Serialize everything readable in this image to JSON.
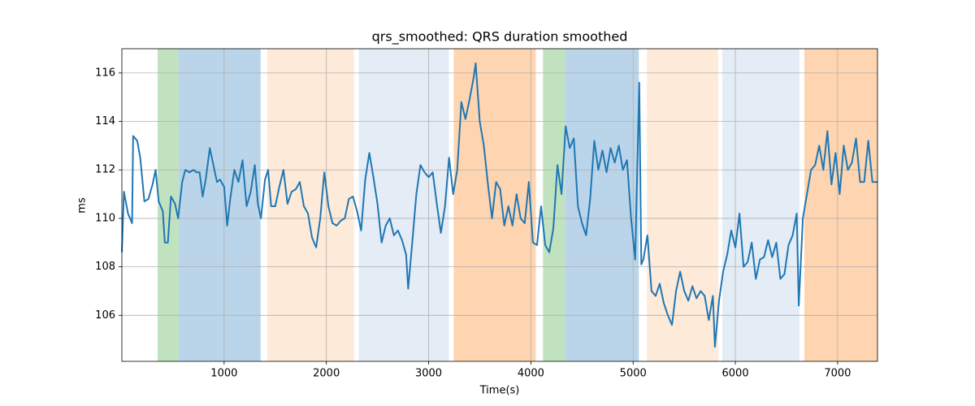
{
  "chart_data": {
    "type": "line",
    "title": "qrs_smoothed: QRS duration smoothed",
    "x_label": "Time(s)",
    "y_label": "ms",
    "xlim": [
      0,
      7390
    ],
    "ylim": [
      104.1,
      117.0
    ],
    "xticks": [
      1000,
      2000,
      3000,
      4000,
      5000,
      6000,
      7000
    ],
    "yticks": [
      106,
      108,
      110,
      112,
      114,
      116
    ],
    "grid": true,
    "spans": [
      {
        "start": 350,
        "end": 555,
        "color": "#c0e2bf"
      },
      {
        "start": 555,
        "end": 1357,
        "color": "#bad5e9"
      },
      {
        "start": 1421,
        "end": 2270,
        "color": "#feead8"
      },
      {
        "start": 2317,
        "end": 3198,
        "color": "#e4ecf6"
      },
      {
        "start": 3246,
        "end": 4048,
        "color": "#fed5b0"
      },
      {
        "start": 4119,
        "end": 4333,
        "color": "#c0e2bf"
      },
      {
        "start": 4333,
        "end": 5056,
        "color": "#bad5e9"
      },
      {
        "start": 5135,
        "end": 5833,
        "color": "#feead8"
      },
      {
        "start": 5873,
        "end": 6627,
        "color": "#e4ecf6"
      },
      {
        "start": 6675,
        "end": 7390,
        "color": "#fed5b0"
      }
    ],
    "series": [
      {
        "color": "#1f77b4",
        "x": [
          0,
          20,
          60,
          100,
          110,
          150,
          180,
          220,
          260,
          300,
          330,
          360,
          400,
          420,
          450,
          480,
          520,
          550,
          590,
          620,
          660,
          700,
          730,
          760,
          790,
          820,
          860,
          890,
          930,
          960,
          1000,
          1030,
          1060,
          1100,
          1140,
          1180,
          1220,
          1260,
          1300,
          1330,
          1360,
          1400,
          1430,
          1460,
          1500,
          1540,
          1580,
          1620,
          1660,
          1700,
          1740,
          1780,
          1820,
          1860,
          1900,
          1940,
          1980,
          2020,
          2060,
          2100,
          2140,
          2180,
          2220,
          2260,
          2300,
          2340,
          2380,
          2420,
          2460,
          2500,
          2540,
          2580,
          2620,
          2660,
          2700,
          2740,
          2780,
          2800,
          2840,
          2880,
          2920,
          2960,
          3000,
          3040,
          3080,
          3120,
          3160,
          3200,
          3240,
          3280,
          3320,
          3360,
          3400,
          3440,
          3460,
          3500,
          3540,
          3580,
          3620,
          3660,
          3700,
          3740,
          3780,
          3820,
          3860,
          3900,
          3940,
          3980,
          4020,
          4060,
          4100,
          4140,
          4180,
          4220,
          4260,
          4300,
          4340,
          4380,
          4420,
          4460,
          4500,
          4540,
          4580,
          4620,
          4660,
          4700,
          4740,
          4780,
          4820,
          4860,
          4900,
          4940,
          4980,
          5020,
          5060,
          5080,
          5100,
          5140,
          5180,
          5220,
          5260,
          5300,
          5340,
          5380,
          5420,
          5460,
          5500,
          5540,
          5580,
          5620,
          5660,
          5700,
          5740,
          5780,
          5800,
          5840,
          5880,
          5920,
          5960,
          6000,
          6040,
          6080,
          6120,
          6160,
          6200,
          6240,
          6280,
          6320,
          6360,
          6400,
          6440,
          6480,
          6520,
          6560,
          6600,
          6620,
          6660,
          6700,
          6740,
          6780,
          6820,
          6860,
          6900,
          6940,
          6980,
          7020,
          7060,
          7100,
          7140,
          7180,
          7220,
          7260,
          7300,
          7340,
          7390
        ],
        "values": [
          108.6,
          111.1,
          110.2,
          109.8,
          113.4,
          113.2,
          112.5,
          110.7,
          110.8,
          111.4,
          112.0,
          110.7,
          110.3,
          109.0,
          109.0,
          110.9,
          110.6,
          110.0,
          111.5,
          112.0,
          111.9,
          112.0,
          111.9,
          111.9,
          110.9,
          111.6,
          112.9,
          112.3,
          111.5,
          111.6,
          111.3,
          109.7,
          110.8,
          112.0,
          111.5,
          112.4,
          110.5,
          111.1,
          112.2,
          110.6,
          110.0,
          111.6,
          112.0,
          110.5,
          110.5,
          111.3,
          112.0,
          110.6,
          111.1,
          111.2,
          111.5,
          110.5,
          110.2,
          109.2,
          108.8,
          110.0,
          111.9,
          110.5,
          109.8,
          109.7,
          109.9,
          110.0,
          110.8,
          110.9,
          110.3,
          109.5,
          111.6,
          112.7,
          111.7,
          110.6,
          109.0,
          109.7,
          110.0,
          109.3,
          109.5,
          109.1,
          108.5,
          107.1,
          109.0,
          111.0,
          112.2,
          111.9,
          111.7,
          111.9,
          110.6,
          109.4,
          110.5,
          112.5,
          111.0,
          112.0,
          114.8,
          114.1,
          114.9,
          115.8,
          116.4,
          114.0,
          113.0,
          111.4,
          110.0,
          111.5,
          111.2,
          109.7,
          110.5,
          109.7,
          111.0,
          110.0,
          109.8,
          111.5,
          109.0,
          108.9,
          110.5,
          108.9,
          108.6,
          109.6,
          112.2,
          111.0,
          113.8,
          112.9,
          113.3,
          110.5,
          109.8,
          109.3,
          110.8,
          113.2,
          112.0,
          112.8,
          111.9,
          112.9,
          112.3,
          113.0,
          112.0,
          112.4,
          110.0,
          108.3,
          115.6,
          108.1,
          108.3,
          109.3,
          107.0,
          106.8,
          107.3,
          106.5,
          106.0,
          105.6,
          107.0,
          107.8,
          107.0,
          106.6,
          107.2,
          106.7,
          107.0,
          106.8,
          105.8,
          106.8,
          104.7,
          106.6,
          107.8,
          108.5,
          109.5,
          108.8,
          110.2,
          108.0,
          108.2,
          109.0,
          107.5,
          108.3,
          108.4,
          109.1,
          108.4,
          109.0,
          107.5,
          107.7,
          108.9,
          109.3,
          110.2,
          106.4,
          110.0,
          111.0,
          112.0,
          112.2,
          113.0,
          112.0,
          113.6,
          111.4,
          112.7,
          111.0,
          113.0,
          112.0,
          112.3,
          113.3,
          111.5,
          111.5,
          113.2,
          111.5,
          111.5
        ]
      }
    ]
  }
}
